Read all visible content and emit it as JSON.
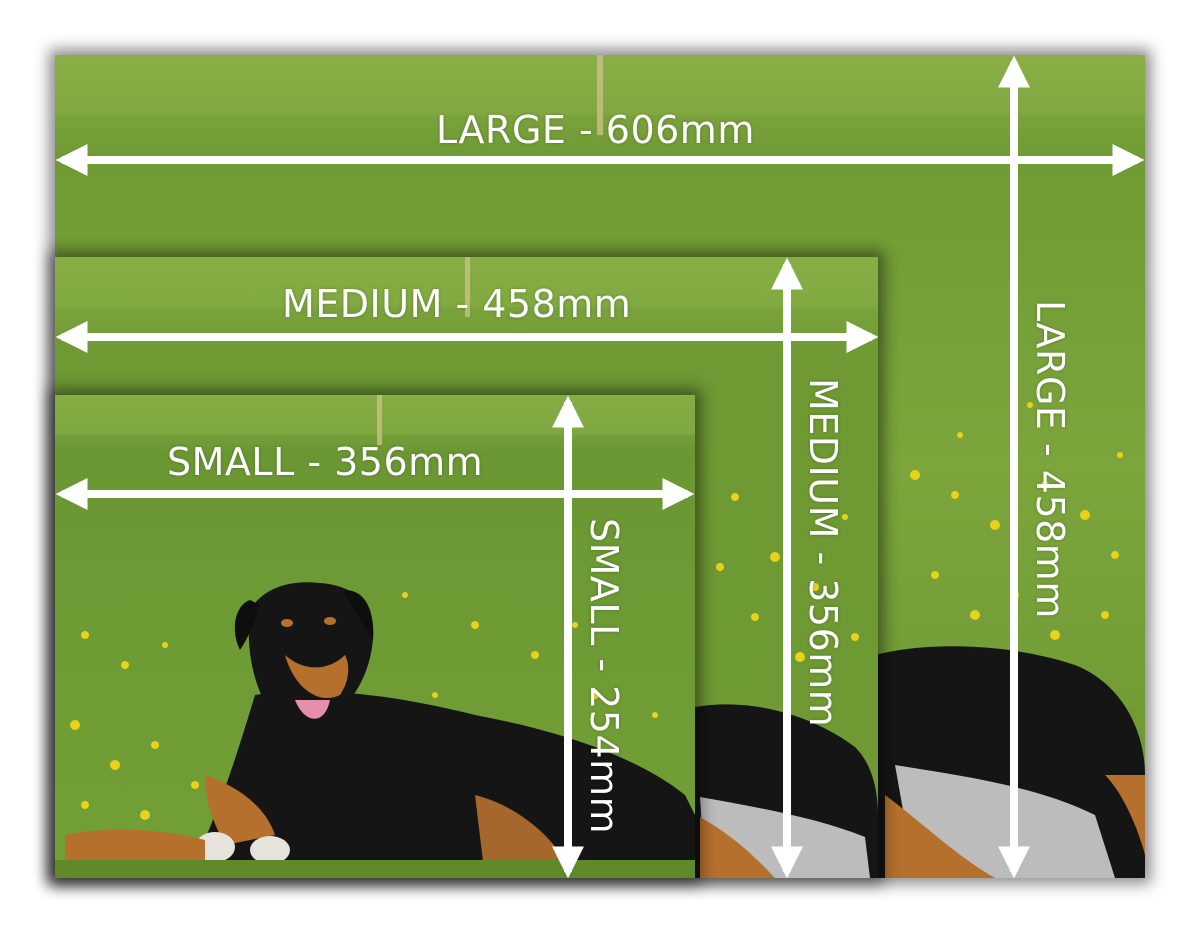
{
  "sizes": {
    "large": {
      "width_label": "LARGE - 606mm",
      "height_label": "LARGE - 458mm"
    },
    "medium": {
      "width_label": "MEDIUM - 458mm",
      "height_label": "MEDIUM - 356mm"
    },
    "small": {
      "width_label": "SMALL - 356mm",
      "height_label": "SMALL - 254mm"
    }
  },
  "colors": {
    "grass": "#7aa23a",
    "grass_dark": "#5f8a2a",
    "flower": "#e8d21a",
    "dog_black": "#151515",
    "dog_tan": "#b5702d",
    "arrow": "#ffffff"
  }
}
